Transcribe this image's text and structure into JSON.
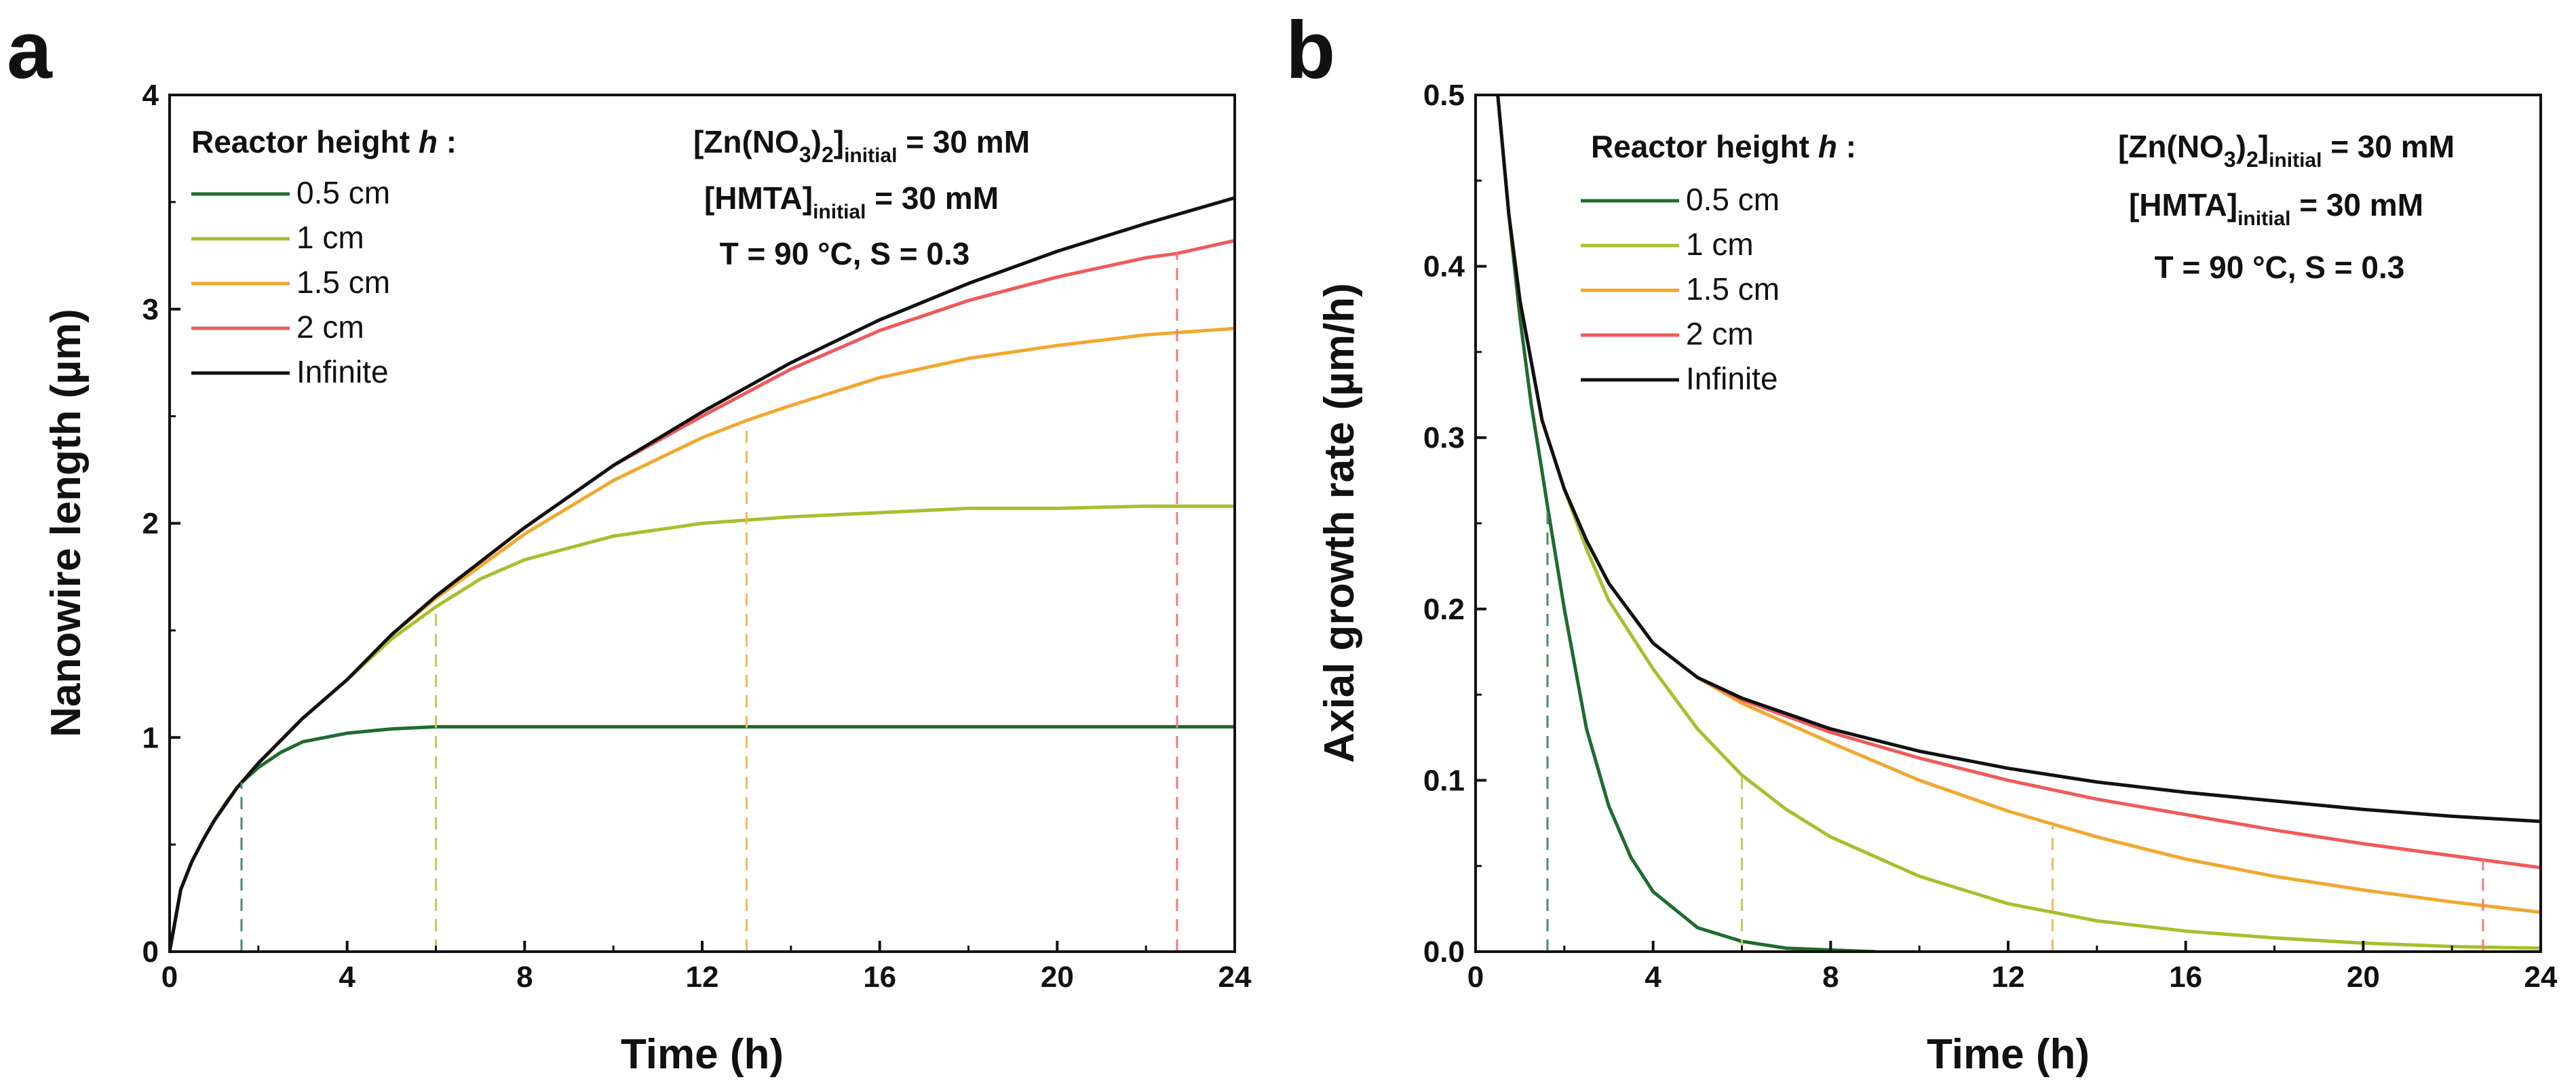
{
  "chart_data": [
    {
      "type": "line",
      "panel": "a",
      "title": "",
      "xlabel": "Time (h)",
      "ylabel": "Nanowire length (µm)",
      "xlim": [
        0,
        24
      ],
      "ylim": [
        0,
        4
      ],
      "xticks": [
        "0",
        "4",
        "8",
        "12",
        "16",
        "20",
        "24"
      ],
      "yticks": [
        "0",
        "1",
        "2",
        "3",
        "4"
      ],
      "grid": false,
      "legend_title": "Reactor height ",
      "legend_title_var": "h",
      "legend_title_suffix": " :",
      "legend_placement": "top-left",
      "conditions": {
        "zn_prefix": "[Zn(NO",
        "zn_sub3": "3",
        "zn_close": ")",
        "zn_sub2": "2",
        "zn_bracket": "]",
        "zn_initial": "initial",
        "zn_value": " = 30 mM",
        "hmta_prefix": "[HMTA]",
        "hmta_initial": "initial",
        "hmta_value": " = 30 mM",
        "line3": "T = 90 °C, S = 0.3"
      },
      "series": [
        {
          "name": "0.5 cm",
          "color": "#1f6b2e",
          "x": [
            0,
            0.25,
            0.5,
            0.75,
            1,
            1.25,
            1.5,
            1.62,
            2,
            2.5,
            3,
            4,
            5,
            6,
            8,
            12,
            16,
            20,
            24
          ],
          "y": [
            0,
            0.29,
            0.42,
            0.52,
            0.61,
            0.69,
            0.76,
            0.79,
            0.86,
            0.93,
            0.98,
            1.02,
            1.04,
            1.05,
            1.05,
            1.05,
            1.05,
            1.05,
            1.05
          ]
        },
        {
          "name": "1 cm",
          "color": "#a8bf2e",
          "x": [
            0,
            0.25,
            0.5,
            0.75,
            1,
            1.5,
            2,
            3,
            4,
            5,
            6,
            7,
            8,
            10,
            12,
            14,
            16,
            18,
            20,
            22,
            24
          ],
          "y": [
            0,
            0.29,
            0.42,
            0.52,
            0.61,
            0.76,
            0.88,
            1.09,
            1.27,
            1.46,
            1.61,
            1.74,
            1.83,
            1.94,
            2.0,
            2.03,
            2.05,
            2.07,
            2.07,
            2.08,
            2.08
          ]
        },
        {
          "name": "1.5 cm",
          "color": "#f0a830",
          "x": [
            0,
            0.25,
            0.5,
            0.75,
            1,
            1.5,
            2,
            3,
            4,
            5,
            6,
            8,
            10,
            12,
            13,
            14,
            16,
            18,
            20,
            22,
            24
          ],
          "y": [
            0,
            0.29,
            0.42,
            0.52,
            0.61,
            0.76,
            0.88,
            1.09,
            1.27,
            1.48,
            1.65,
            1.95,
            2.2,
            2.4,
            2.48,
            2.55,
            2.68,
            2.77,
            2.83,
            2.88,
            2.91
          ]
        },
        {
          "name": "2 cm",
          "color": "#ef5a5a",
          "x": [
            0,
            0.25,
            0.5,
            0.75,
            1,
            1.5,
            2,
            3,
            4,
            5,
            6,
            8,
            10,
            12,
            14,
            16,
            18,
            20,
            22,
            22.7,
            24
          ],
          "y": [
            0,
            0.29,
            0.42,
            0.52,
            0.61,
            0.76,
            0.88,
            1.09,
            1.27,
            1.48,
            1.66,
            1.98,
            2.27,
            2.5,
            2.72,
            2.9,
            3.04,
            3.15,
            3.24,
            3.26,
            3.32
          ]
        },
        {
          "name": "Infinite",
          "color": "#111111",
          "x": [
            0,
            0.25,
            0.5,
            0.75,
            1,
            1.5,
            2,
            3,
            4,
            5,
            6,
            8,
            10,
            12,
            14,
            16,
            18,
            20,
            22,
            24
          ],
          "y": [
            0,
            0.29,
            0.42,
            0.52,
            0.61,
            0.76,
            0.88,
            1.09,
            1.27,
            1.48,
            1.66,
            1.98,
            2.27,
            2.52,
            2.75,
            2.95,
            3.12,
            3.27,
            3.4,
            3.52
          ]
        }
      ],
      "vlines": [
        {
          "x": 1.62,
          "y": 0.79,
          "color": "#4a8a66"
        },
        {
          "x": 6.0,
          "y": 1.61,
          "color": "#b9cf57"
        },
        {
          "x": 13.0,
          "y": 2.48,
          "color": "#f3b85c"
        },
        {
          "x": 22.7,
          "y": 3.26,
          "color": "#f27c7c"
        }
      ]
    },
    {
      "type": "line",
      "panel": "b",
      "title": "",
      "xlabel": "Time (h)",
      "ylabel": "Axial growth rate (µm/h)",
      "xlim": [
        0,
        24
      ],
      "ylim": [
        0,
        0.5
      ],
      "xticks": [
        "0",
        "4",
        "8",
        "12",
        "16",
        "20",
        "24"
      ],
      "yticks": [
        "0.0",
        "0.1",
        "0.2",
        "0.3",
        "0.4",
        "0.5"
      ],
      "grid": false,
      "legend_title": "Reactor height ",
      "legend_title_var": "h",
      "legend_title_suffix": " :",
      "legend_placement": "top-left",
      "conditions": {
        "zn_prefix": "[Zn(NO",
        "zn_sub3": "3",
        "zn_close": ")",
        "zn_sub2": "2",
        "zn_bracket": "]",
        "zn_initial": "initial",
        "zn_value": " = 30 mM",
        "hmta_prefix": "[HMTA]",
        "hmta_initial": "initial",
        "hmta_value": " = 30 mM",
        "line3": "T = 90 °C, S = 0.3"
      },
      "series": [
        {
          "name": "0.5 cm",
          "color": "#1f6b2e",
          "x": [
            0.5,
            0.75,
            1,
            1.25,
            1.5,
            1.62,
            2,
            2.5,
            3,
            3.5,
            4,
            5,
            6,
            7,
            8,
            9
          ],
          "y": [
            0.5,
            0.43,
            0.37,
            0.32,
            0.28,
            0.26,
            0.2,
            0.13,
            0.085,
            0.055,
            0.035,
            0.014,
            0.006,
            0.002,
            0.001,
            0.0
          ]
        },
        {
          "name": "1 cm",
          "color": "#a8bf2e",
          "x": [
            0.5,
            0.75,
            1,
            1.5,
            2,
            2.5,
            3,
            4,
            5,
            6,
            7,
            8,
            10,
            12,
            14,
            16,
            18,
            20,
            22,
            24
          ],
          "y": [
            0.5,
            0.43,
            0.38,
            0.31,
            0.27,
            0.235,
            0.205,
            0.165,
            0.13,
            0.103,
            0.083,
            0.067,
            0.044,
            0.028,
            0.018,
            0.012,
            0.008,
            0.005,
            0.003,
            0.002
          ]
        },
        {
          "name": "1.5 cm",
          "color": "#f0a830",
          "x": [
            0.5,
            0.75,
            1,
            1.5,
            2,
            2.5,
            3,
            4,
            5,
            6,
            8,
            10,
            12,
            14,
            16,
            18,
            20,
            22,
            24
          ],
          "y": [
            0.5,
            0.43,
            0.38,
            0.31,
            0.27,
            0.24,
            0.215,
            0.18,
            0.16,
            0.145,
            0.122,
            0.1,
            0.082,
            0.067,
            0.054,
            0.044,
            0.036,
            0.029,
            0.023
          ]
        },
        {
          "name": "2 cm",
          "color": "#ef5a5a",
          "x": [
            0.5,
            0.75,
            1,
            1.5,
            2,
            2.5,
            3,
            4,
            5,
            6,
            8,
            10,
            12,
            14,
            16,
            18,
            20,
            22,
            24
          ],
          "y": [
            0.5,
            0.43,
            0.38,
            0.31,
            0.27,
            0.24,
            0.215,
            0.18,
            0.16,
            0.147,
            0.128,
            0.113,
            0.1,
            0.089,
            0.08,
            0.071,
            0.063,
            0.056,
            0.049
          ]
        },
        {
          "name": "Infinite",
          "color": "#111111",
          "x": [
            0.5,
            0.75,
            1,
            1.5,
            2,
            2.5,
            3,
            4,
            5,
            6,
            8,
            10,
            12,
            14,
            16,
            18,
            20,
            22,
            24
          ],
          "y": [
            0.5,
            0.43,
            0.38,
            0.31,
            0.27,
            0.24,
            0.215,
            0.18,
            0.16,
            0.148,
            0.13,
            0.117,
            0.107,
            0.099,
            0.093,
            0.088,
            0.083,
            0.079,
            0.076
          ]
        }
      ],
      "vlines": [
        {
          "x": 1.62,
          "y": 0.26,
          "color": "#4a8a66"
        },
        {
          "x": 6.0,
          "y": 0.103,
          "color": "#b9cf57"
        },
        {
          "x": 13.0,
          "y": 0.074,
          "color": "#f3b85c"
        },
        {
          "x": 22.7,
          "y": 0.054,
          "color": "#f27c7c"
        }
      ]
    }
  ]
}
